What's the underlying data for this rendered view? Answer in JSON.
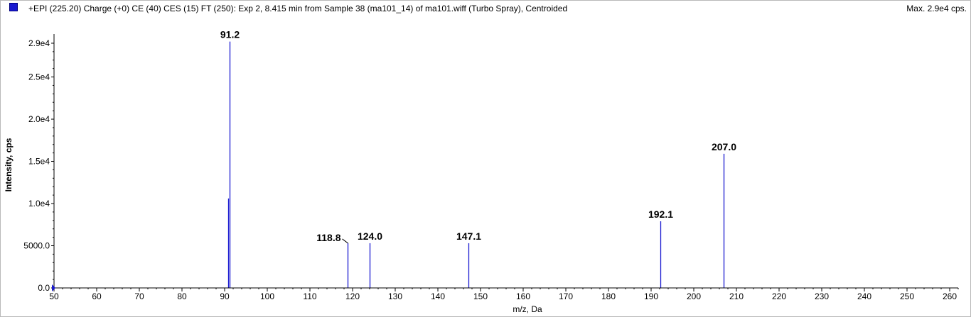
{
  "header": {
    "title": "+EPI (225.20) Charge (+0) CE (40) CES (15) FT (250): Exp 2, 8.415 min from Sample 38 (ma101_14) of ma101.wiff (Turbo Spray), Centroided",
    "max_label": "Max. 2.9e4 cps."
  },
  "colors": {
    "series": "#1a1ad0",
    "axis": "#000000"
  },
  "chart_data": {
    "type": "bar",
    "xlabel": "m/z, Da",
    "ylabel": "Intensity, cps",
    "xlim": [
      50,
      262
    ],
    "ylim": [
      0,
      29500
    ],
    "x_ticks": [
      50,
      60,
      70,
      80,
      90,
      100,
      110,
      120,
      130,
      140,
      150,
      160,
      170,
      180,
      190,
      200,
      210,
      220,
      230,
      240,
      250,
      260
    ],
    "y_ticks": [
      {
        "value": 0,
        "label": "0.0"
      },
      {
        "value": 5000,
        "label": "5000.0"
      },
      {
        "value": 10000,
        "label": "1.0e4"
      },
      {
        "value": 15000,
        "label": "1.5e4"
      },
      {
        "value": 20000,
        "label": "2.0e4"
      },
      {
        "value": 25000,
        "label": "2.5e4"
      },
      {
        "value": 29000,
        "label": "2.9e4"
      }
    ],
    "peaks": [
      {
        "mz": 90.8,
        "intensity": 10600,
        "label": ""
      },
      {
        "mz": 91.2,
        "intensity": 29200,
        "label": "91.2"
      },
      {
        "mz": 118.8,
        "intensity": 5300,
        "label": "118.8"
      },
      {
        "mz": 124.0,
        "intensity": 5300,
        "label": "124.0"
      },
      {
        "mz": 147.1,
        "intensity": 5300,
        "label": "147.1"
      },
      {
        "mz": 192.1,
        "intensity": 7900,
        "label": "192.1"
      },
      {
        "mz": 207.0,
        "intensity": 15900,
        "label": "207.0"
      }
    ]
  }
}
